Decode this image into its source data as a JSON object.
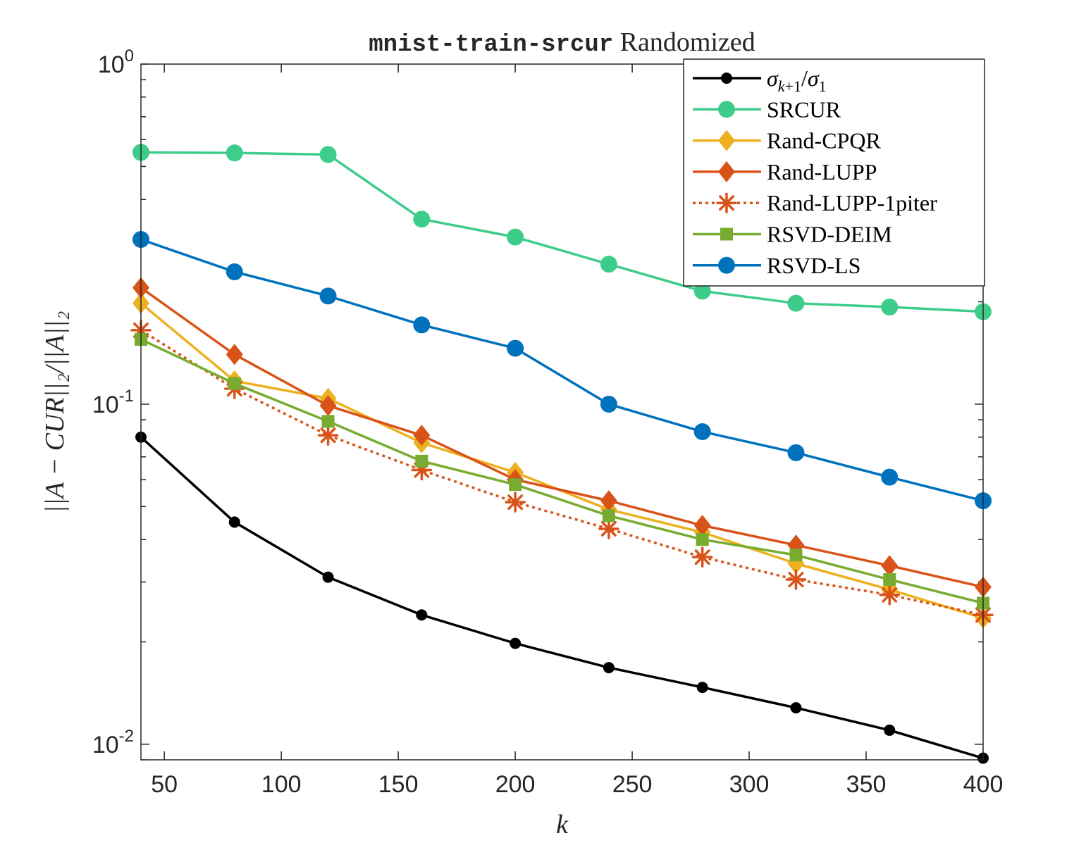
{
  "chart_data": {
    "type": "line",
    "title": {
      "mono": "mnist-train-srcur",
      "rest": " Randomized"
    },
    "xlabel": "k",
    "ylabel": "||A − CUR||₂/||A||₂",
    "xscale": "linear",
    "yscale": "log",
    "xlim": [
      40,
      400
    ],
    "ylim": [
      0.009,
      1
    ],
    "xticks": [
      50,
      100,
      150,
      200,
      250,
      300,
      350,
      400
    ],
    "xtick_labels": [
      "50",
      "100",
      "150",
      "200",
      "250",
      "300",
      "350",
      "400"
    ],
    "yticks": [
      {
        "value": 1,
        "base": "10",
        "exp": "0"
      },
      {
        "value": 0.1,
        "base": "10",
        "exp": "-1"
      },
      {
        "value": 0.01,
        "base": "10",
        "exp": "-2"
      }
    ],
    "grid": false,
    "legend_position": "top-right",
    "x": [
      40,
      80,
      120,
      160,
      200,
      240,
      280,
      320,
      360,
      400
    ],
    "series": [
      {
        "name": "σk+1/σ1",
        "name_html": "<tspan font-style='italic'>σ</tspan><tspan font-style='italic' font-size='22' dy='8'>k</tspan><tspan font-size='22'>+1</tspan><tspan dy='-8'>/</tspan><tspan font-style='italic'>σ</tspan><tspan font-size='22' dy='8'>1</tspan>",
        "color": "#000000",
        "marker": "dot",
        "dash": false,
        "values": [
          0.08,
          0.045,
          0.031,
          0.024,
          0.0198,
          0.0168,
          0.0147,
          0.0128,
          0.011,
          0.0091
        ]
      },
      {
        "name": "SRCUR",
        "color": "#3ecc8a",
        "marker": "circle",
        "dash": false,
        "values": [
          0.55,
          0.548,
          0.542,
          0.35,
          0.31,
          0.258,
          0.215,
          0.198,
          0.193,
          0.187
        ]
      },
      {
        "name": "Rand-CPQR",
        "color": "#edb120",
        "marker": "diamond",
        "dash": false,
        "values": [
          0.198,
          0.117,
          0.104,
          0.077,
          0.063,
          0.049,
          0.042,
          0.034,
          0.0285,
          0.0235
        ]
      },
      {
        "name": "Rand-LUPP",
        "color": "#d95319",
        "marker": "diamond",
        "dash": false,
        "values": [
          0.22,
          0.14,
          0.099,
          0.081,
          0.06,
          0.052,
          0.044,
          0.0385,
          0.0335,
          0.029
        ]
      },
      {
        "name": "Rand-LUPP-1piter",
        "color": "#d95319",
        "marker": "asterisk",
        "dash": true,
        "values": [
          0.165,
          0.111,
          0.081,
          0.064,
          0.0515,
          0.043,
          0.0355,
          0.0305,
          0.0275,
          0.024
        ]
      },
      {
        "name": "RSVD-DEIM",
        "color": "#77ac30",
        "marker": "square",
        "dash": false,
        "values": [
          0.155,
          0.115,
          0.089,
          0.068,
          0.058,
          0.047,
          0.04,
          0.036,
          0.0305,
          0.026
        ]
      },
      {
        "name": "RSVD-LS",
        "color": "#0072bd",
        "marker": "circle",
        "dash": false,
        "values": [
          0.305,
          0.245,
          0.208,
          0.171,
          0.146,
          0.1,
          0.083,
          0.072,
          0.061,
          0.052
        ]
      }
    ]
  }
}
